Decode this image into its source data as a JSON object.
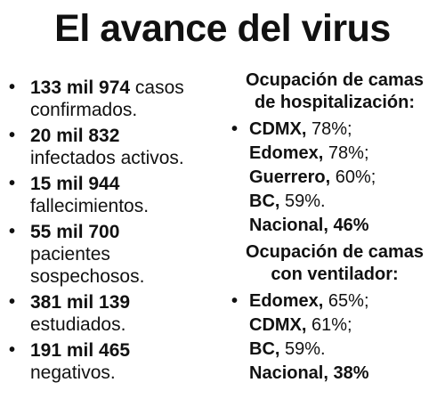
{
  "title": "El avance del virus",
  "stats": [
    {
      "number": "133 mil 974",
      "label_line1": " casos",
      "label_line2": "confirmados."
    },
    {
      "number": "20 mil 832",
      "label_line1": "",
      "label_line2": "infectados activos."
    },
    {
      "number": "15 mil 944",
      "label_line1": "",
      "label_line2": "fallecimientos."
    },
    {
      "number": "55 mil 700",
      "label_line1": "",
      "label_line2": "pacientes",
      "label_line3": "sospechosos."
    },
    {
      "number": "381 mil 139",
      "label_line1": "",
      "label_line2": "estudiados."
    },
    {
      "number": "191 mil 465",
      "label_line1": "",
      "label_line2": "negativos."
    }
  ],
  "hospitalization": {
    "heading_line1": "Ocupación de camas",
    "heading_line2": "de hospitalización:",
    "items": [
      {
        "place": "CDMX,",
        "value": " 78%;"
      },
      {
        "place": "Edomex,",
        "value": " 78%;"
      },
      {
        "place": "Guerrero,",
        "value": " 60%;"
      },
      {
        "place": "BC,",
        "value": " 59%."
      },
      {
        "place": "Nacional, 46%",
        "value": ""
      }
    ]
  },
  "ventilator": {
    "heading_line1": "Ocupación de camas",
    "heading_line2": "con ventilador:",
    "items": [
      {
        "place": "Edomex,",
        "value": " 65%;"
      },
      {
        "place": "CDMX,",
        "value": " 61%;"
      },
      {
        "place": "BC,",
        "value": " 59%."
      },
      {
        "place": "Nacional, 38%",
        "value": ""
      }
    ]
  }
}
